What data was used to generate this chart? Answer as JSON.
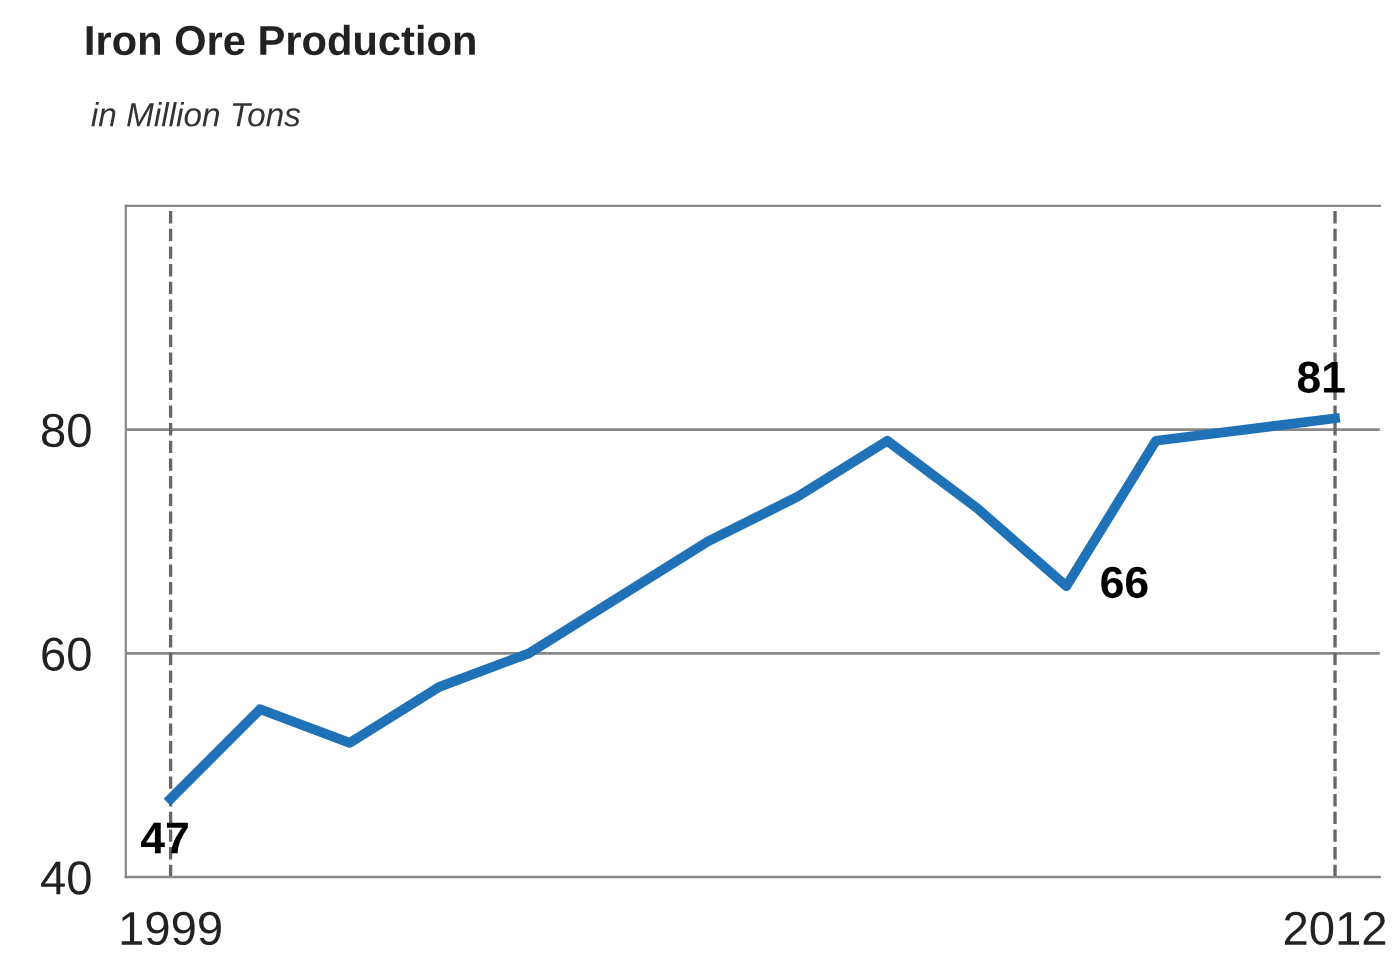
{
  "chart_data": {
    "type": "line",
    "title": "Iron Ore Production",
    "subtitle": "in Million Tons",
    "x": [
      1999,
      2000,
      2001,
      2002,
      2003,
      2004,
      2005,
      2006,
      2007,
      2008,
      2009,
      2010,
      2011,
      2012
    ],
    "series": [
      {
        "color": "#1f72b8",
        "values": [
          47,
          55,
          52,
          57,
          60,
          65,
          70,
          74,
          79,
          73,
          66,
          79,
          80,
          81
        ],
        "value_labels": [
          "47",
          null,
          null,
          null,
          null,
          null,
          null,
          null,
          null,
          null,
          "66",
          null,
          null,
          "81"
        ]
      }
    ],
    "xlim": [
      1998.5,
      2012.5
    ],
    "xticks": [
      1999,
      2012
    ],
    "ylim": [
      40,
      100
    ],
    "yticks": [
      40,
      60,
      80
    ],
    "grid": "y",
    "legend": false,
    "marker": "none",
    "line_style": "solid",
    "ref_lines": [
      {
        "axis": "x",
        "value": 1999,
        "color": "#666666",
        "line_style": "dashed"
      },
      {
        "axis": "x",
        "value": 2012,
        "color": "#666666",
        "line_style": "dashed"
      }
    ]
  }
}
